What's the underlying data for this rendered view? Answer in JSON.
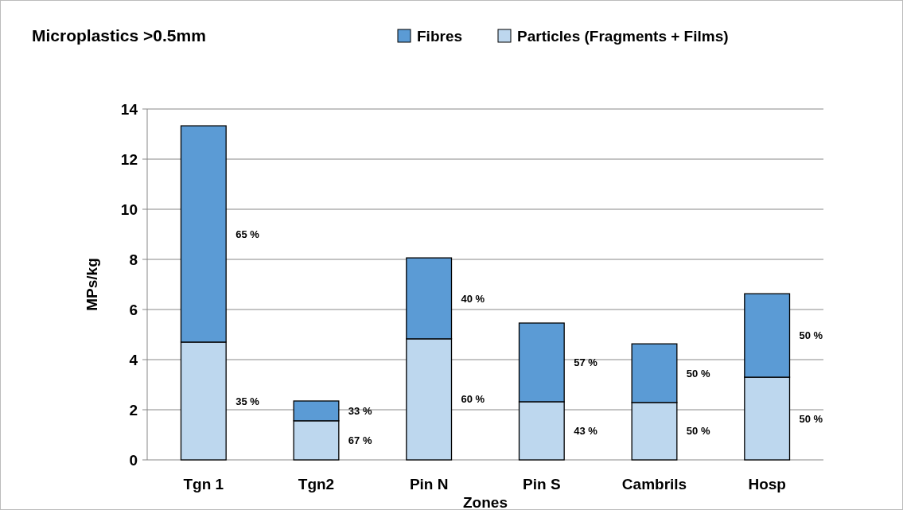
{
  "chart_data": {
    "type": "bar",
    "title": "Microplastics >0.5mm",
    "xlabel": "Zones",
    "ylabel": "MPs/kg",
    "categories": [
      "Tgn 1",
      "Tgn2",
      "Pin N",
      "Pin S",
      "Cambrils",
      "Hosp"
    ],
    "stacked": true,
    "series": [
      {
        "name": "Particles  (Fragments + Films)",
        "color": "#bdd7ee",
        "values": [
          4.7,
          1.56,
          4.83,
          2.32,
          2.29,
          3.3
        ]
      },
      {
        "name": "Fibres",
        "color": "#5b9bd5",
        "values": [
          8.63,
          0.79,
          3.23,
          3.14,
          2.34,
          3.33
        ]
      }
    ],
    "annotations": [
      "65 %",
      "35 %",
      "33 %",
      "67 %",
      "40 %",
      "60 %",
      "57 %",
      "43 %",
      "50 %",
      "50 %",
      "50 %",
      "50 %"
    ],
    "ylim": [
      0,
      14
    ],
    "yticks": [
      0,
      2,
      4,
      6,
      8,
      10,
      12,
      14
    ],
    "grid": "y",
    "legend": "top"
  }
}
